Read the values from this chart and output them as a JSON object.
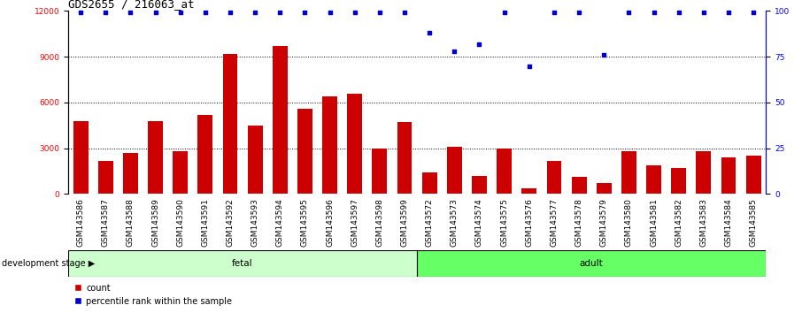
{
  "title": "GDS2655 / 216063_at",
  "categories": [
    "GSM143586",
    "GSM143587",
    "GSM143588",
    "GSM143589",
    "GSM143590",
    "GSM143591",
    "GSM143592",
    "GSM143593",
    "GSM143594",
    "GSM143595",
    "GSM143596",
    "GSM143597",
    "GSM143598",
    "GSM143599",
    "GSM143572",
    "GSM143573",
    "GSM143574",
    "GSM143575",
    "GSM143576",
    "GSM143577",
    "GSM143578",
    "GSM143579",
    "GSM143580",
    "GSM143581",
    "GSM143582",
    "GSM143583",
    "GSM143584",
    "GSM143585"
  ],
  "bar_values": [
    4800,
    2200,
    2700,
    4800,
    2800,
    5200,
    9200,
    4500,
    9700,
    5600,
    6400,
    6600,
    3000,
    4700,
    1400,
    3100,
    1200,
    3000,
    400,
    2200,
    1100,
    700,
    2800,
    1900,
    1700,
    2800,
    2400,
    2500
  ],
  "percentile_values": [
    99,
    99,
    99,
    99,
    99,
    99,
    99,
    99,
    99,
    99,
    99,
    99,
    99,
    99,
    88,
    78,
    82,
    99,
    70,
    99,
    99,
    76,
    99,
    99,
    99,
    99,
    99,
    99
  ],
  "bar_color": "#cc0000",
  "dot_color": "#0000cc",
  "ylim_left": [
    0,
    12000
  ],
  "ylim_right": [
    0,
    100
  ],
  "yticks_left": [
    0,
    3000,
    6000,
    9000,
    12000
  ],
  "yticks_right": [
    0,
    25,
    50,
    75,
    100
  ],
  "grid_values": [
    3000,
    6000,
    9000
  ],
  "fetal_count": 14,
  "adult_count": 14,
  "fetal_label": "fetal",
  "adult_label": "adult",
  "stage_label": "development stage",
  "legend_count_label": "count",
  "legend_pct_label": "percentile rank within the sample",
  "fetal_color": "#ccffcc",
  "adult_color": "#66ff66",
  "tick_bg_color": "#cccccc",
  "title_fontsize": 9,
  "tick_fontsize": 6.5,
  "label_fontsize": 7.5
}
